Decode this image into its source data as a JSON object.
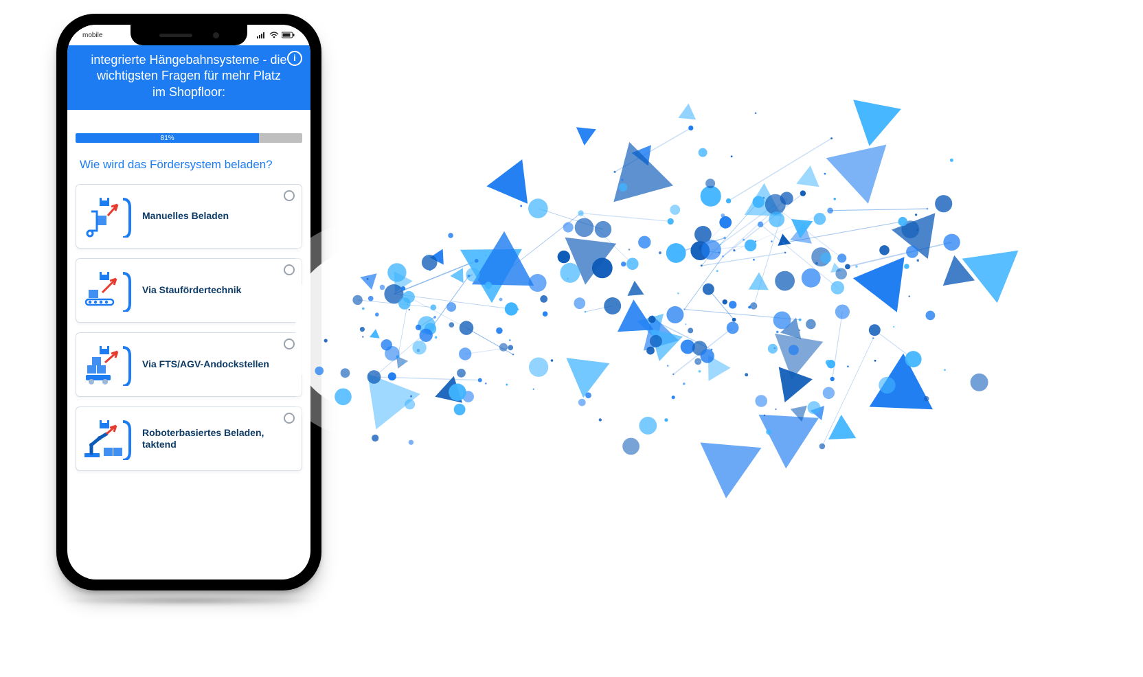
{
  "phone": {
    "status_left": "mobile",
    "header_title": "integrierte Hängebahnsysteme - die wichtigsten Fragen für mehr Platz im Shopfloor:",
    "info_icon_glyph": "i",
    "progress": {
      "percent": 81,
      "label": "81%"
    },
    "question": "Wie wird das Fördersystem beladen?",
    "options": [
      {
        "label": "Manuelles Beladen"
      },
      {
        "label": "Via Staufördertechnik"
      },
      {
        "label": "Via FTS/AGV-Andockstellen"
      },
      {
        "label": "Roboterbasiertes Beladen, taktend"
      }
    ],
    "colors": {
      "primary": "#1e7cf2",
      "option_text": "#0d3b66",
      "option_border": "#d6dde6",
      "progress_bg": "#bfbfbf",
      "radio_border": "#9aa3ad"
    }
  },
  "artwork": {
    "type": "network",
    "colors": {
      "light": "#3fb4ff",
      "mid": "#1e7cf2",
      "dark": "#0d5bb8",
      "line": "#2b7bd9"
    },
    "triangle_count": 45,
    "line_count": 180,
    "dot_count": 220
  }
}
